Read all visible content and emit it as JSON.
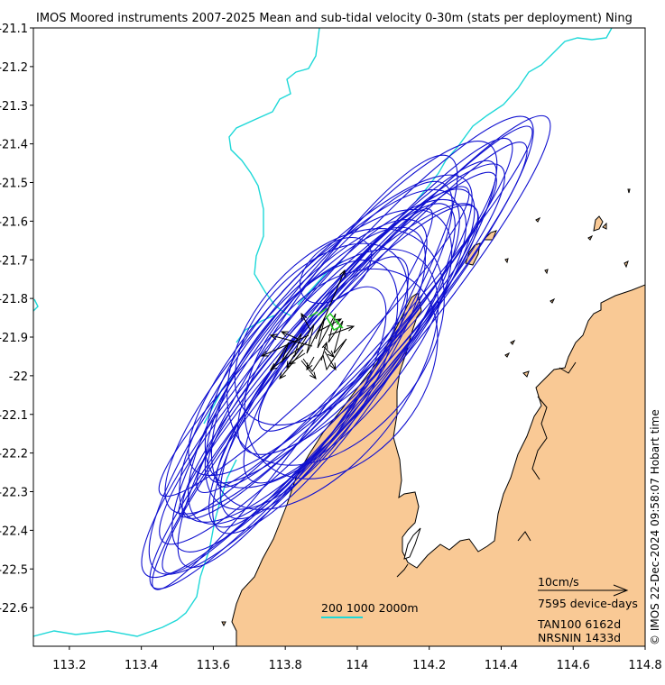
{
  "title": "IMOS Moored instruments 2007-2025 Mean and sub-tidal velocity 0-30m (stats per deployment) Ning",
  "x_axis": {
    "ticks": [
      "113.2",
      "113.4",
      "113.6",
      "113.8",
      "114",
      "114.2",
      "114.4",
      "114.6",
      "114.8"
    ]
  },
  "y_axis": {
    "ticks": [
      "-21.1",
      "-21.2",
      "-21.3",
      "-21.4",
      "-21.5",
      "-21.6",
      "-21.7",
      "-21.8",
      "-21.9",
      "-22",
      "-22.1",
      "-22.2",
      "-22.3",
      "-22.4",
      "-22.5",
      "-22.6"
    ]
  },
  "bathymetry_legend": "200 1000 2000m",
  "scale_arrow": {
    "speed_label": "10cm/s",
    "days_label": "7595 device-days"
  },
  "stations": [
    "TAN100 6162d",
    "NRSNIN 1433d"
  ],
  "watermark": "© IMOS 22-Dec-2024 09:58:07 Hobart time",
  "colors": {
    "land": "#f9c995",
    "coast": "#000000",
    "isobath": "#1ed8d8",
    "ellipse": "#1010d0",
    "vector": "#000000",
    "mean": "#22cc22"
  },
  "chart_data": {
    "type": "map",
    "xlim": [
      113.1,
      114.8
    ],
    "ylim": [
      -22.7,
      -21.1
    ],
    "ellipse_center": [
      113.92,
      -21.93
    ]
  }
}
